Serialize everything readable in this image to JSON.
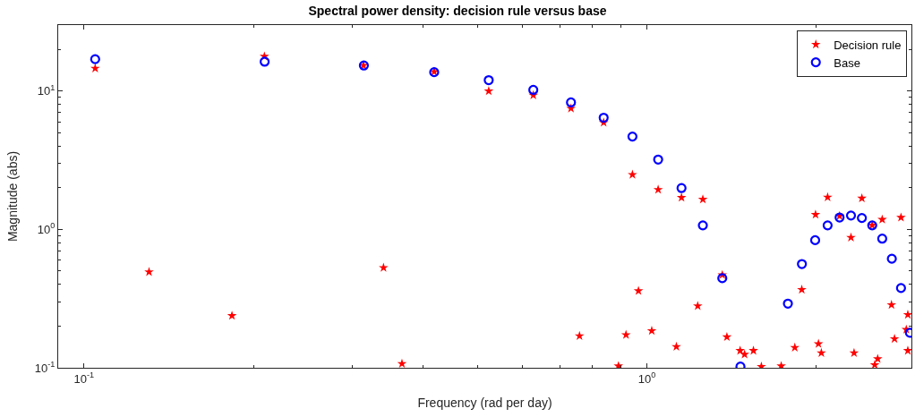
{
  "chart_data": {
    "type": "scatter",
    "title": "Spectral power density: decision rule versus base",
    "xlabel": "Frequency (rad per day)",
    "ylabel": "Magnitude (abs)",
    "log": "xy",
    "legend": "top right",
    "xlim": [
      0.09,
      2.95
    ],
    "ylim": [
      0.1,
      30
    ],
    "xticks": [
      {
        "value": 0.1,
        "label": "10$^{-1}$"
      },
      {
        "value": 1,
        "label": "10$^{0}$"
      }
    ],
    "yticks": [
      {
        "value": 0.1,
        "label": "10$^{-1}$"
      },
      {
        "value": 1,
        "label": "10$^{0}$"
      },
      {
        "value": 10,
        "label": "10$^{1}$"
      }
    ],
    "series": [
      {
        "name": "Decision rule",
        "color": "#ff0000",
        "marker": "star",
        "x": [
          0.1047,
          0.1305,
          0.1832,
          0.2092,
          0.3137,
          0.3405,
          0.3672,
          0.4189,
          0.5236,
          0.6283,
          0.733,
          0.8378,
          0.9425,
          1.047,
          1.152,
          1.257,
          1.361,
          0.759,
          0.918,
          0.966,
          1.02,
          0.89,
          1.128,
          1.231,
          1.387,
          1.464,
          1.491,
          1.546,
          1.597,
          1.732,
          1.831,
          1.884,
          1.993,
          2.017,
          2.041,
          2.094,
          2.199,
          2.304,
          2.333,
          2.409,
          2.513,
          2.539,
          2.57,
          2.618,
          2.719,
          2.753,
          2.827,
          2.907,
          2.889,
          2.907
        ],
        "values": [
          14.6,
          0.493,
          0.238,
          17.8,
          15.3,
          0.529,
          0.107,
          13.8,
          10.0,
          9.33,
          7.49,
          5.92,
          2.49,
          1.94,
          1.7,
          1.65,
          0.469,
          0.17,
          0.173,
          0.36,
          0.185,
          0.103,
          0.142,
          0.28,
          0.167,
          0.133,
          0.125,
          0.133,
          0.102,
          0.103,
          0.14,
          0.367,
          1.28,
          0.149,
          0.128,
          1.71,
          1.25,
          0.874,
          0.128,
          1.68,
          1.07,
          0.105,
          0.116,
          1.18,
          0.285,
          0.162,
          1.22,
          0.242,
          0.189,
          0.133
        ]
      },
      {
        "name": "Base",
        "color": "#0000ff",
        "marker": "circle",
        "x": [
          0.1047,
          0.2094,
          0.3142,
          0.4189,
          0.5236,
          0.6283,
          0.733,
          0.8378,
          0.9425,
          1.047,
          1.152,
          1.257,
          1.361,
          1.466,
          1.78,
          1.885,
          1.99,
          2.094,
          2.199,
          2.304,
          2.409,
          2.513,
          2.618,
          2.723,
          2.827,
          2.932
        ],
        "values": [
          17.0,
          16.3,
          15.3,
          13.7,
          12.0,
          10.2,
          8.28,
          6.42,
          4.69,
          3.2,
          1.99,
          1.07,
          0.444,
          0.102,
          0.291,
          0.562,
          0.836,
          1.07,
          1.22,
          1.26,
          1.21,
          1.07,
          0.858,
          0.614,
          0.377,
          0.179
        ]
      }
    ]
  }
}
